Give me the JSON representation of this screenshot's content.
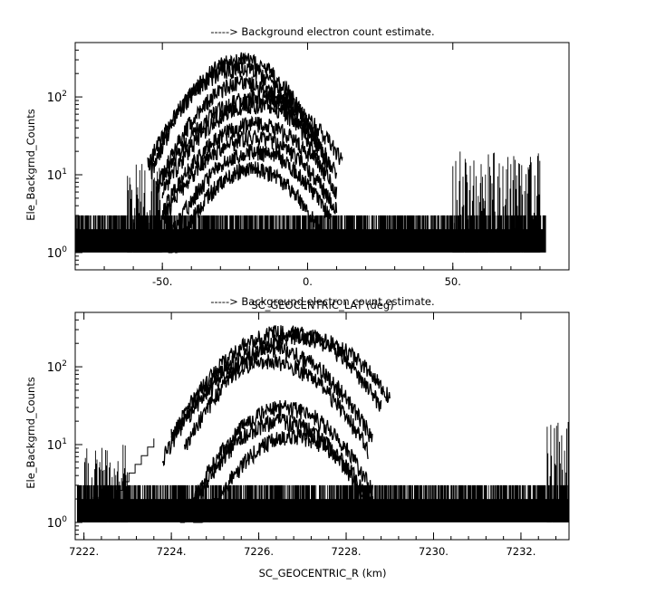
{
  "chart_data": [
    {
      "type": "line",
      "title": "-----> Background electron count estimate.",
      "xlabel": "SC_GEOCENTRIC_LAT (deg)",
      "ylabel": "Ele_Backgrnd_Counts",
      "xlim": [
        -80,
        90
      ],
      "ylim": [
        0.6,
        500
      ],
      "yscale": "log",
      "xticks": [
        -50,
        0,
        50
      ],
      "xtick_labels": [
        "-50.",
        "0.",
        "50."
      ],
      "yticks": [
        1,
        10,
        100
      ],
      "grid": false,
      "legend": "none",
      "noise_floor": {
        "x_range": [
          -82,
          82
        ],
        "value_range": [
          1,
          3
        ]
      },
      "series": [
        {
          "peak_x": -23,
          "peak_y": 300,
          "width": 12,
          "x_range": [
            -54,
            6
          ]
        },
        {
          "peak_x": -24,
          "peak_y": 230,
          "width": 13,
          "x_range": [
            -55,
            8
          ]
        },
        {
          "peak_x": -22,
          "peak_y": 150,
          "width": 12,
          "x_range": [
            -52,
            6
          ]
        },
        {
          "peak_x": -17,
          "peak_y": 100,
          "width": 15,
          "x_range": [
            -52,
            12
          ]
        },
        {
          "peak_x": -18,
          "peak_y": 80,
          "width": 14,
          "x_range": [
            -50,
            10
          ]
        },
        {
          "peak_x": -18,
          "peak_y": 45,
          "width": 14,
          "x_range": [
            -50,
            10
          ]
        },
        {
          "peak_x": -19,
          "peak_y": 30,
          "width": 14,
          "x_range": [
            -50,
            10
          ]
        },
        {
          "peak_x": -18,
          "peak_y": 20,
          "width": 13,
          "x_range": [
            -48,
            8
          ]
        },
        {
          "peak_x": -19,
          "peak_y": 12,
          "width": 12,
          "x_range": [
            -48,
            6
          ]
        }
      ],
      "bursts": [
        {
          "x_range": [
            -62,
            -50
          ],
          "max": 14
        },
        {
          "x_range": [
            50,
            80
          ],
          "max": 20
        }
      ]
    },
    {
      "type": "line",
      "title": "-----> Background electron count estimate.",
      "xlabel": "SC_GEOCENTRIC_R (km)",
      "ylabel": "Ele_Backgrnd_Counts",
      "xlim": [
        7221.8,
        7233.1
      ],
      "ylim": [
        0.6,
        500
      ],
      "yscale": "log",
      "xticks": [
        7222,
        7224,
        7226,
        7228,
        7230,
        7232
      ],
      "xtick_labels": [
        "7222.",
        "7224.",
        "7226.",
        "7228.",
        "7230.",
        "7232."
      ],
      "yticks": [
        1,
        10,
        100
      ],
      "grid": false,
      "legend": "none",
      "noise_floor": {
        "x_range": [
          7221.85,
          7233.1
        ],
        "value_range": [
          1,
          3
        ]
      },
      "series": [
        {
          "peak_x": 7226.6,
          "peak_y": 280,
          "width": 1.05,
          "x_range": [
            7224.0,
            7228.8
          ]
        },
        {
          "peak_x": 7227.0,
          "peak_y": 250,
          "width": 1.05,
          "x_range": [
            7224.3,
            7229.0
          ]
        },
        {
          "peak_x": 7226.3,
          "peak_y": 170,
          "width": 1.0,
          "x_range": [
            7224.0,
            7228.6
          ]
        },
        {
          "peak_x": 7226.2,
          "peak_y": 120,
          "width": 1.0,
          "x_range": [
            7223.8,
            7228.5
          ]
        },
        {
          "peak_x": 7226.6,
          "peak_y": 30,
          "width": 0.9,
          "x_range": [
            7224.2,
            7228.6
          ]
        },
        {
          "peak_x": 7226.5,
          "peak_y": 20,
          "width": 0.9,
          "x_range": [
            7224.2,
            7228.5
          ]
        },
        {
          "peak_x": 7226.8,
          "peak_y": 13,
          "width": 0.9,
          "x_range": [
            7224.5,
            7228.6
          ]
        }
      ],
      "bursts": [
        {
          "x_range": [
            7222.0,
            7223.0
          ],
          "max": 10
        },
        {
          "x_range": [
            7232.6,
            7233.1
          ],
          "max": 20
        }
      ],
      "ramp": {
        "x_range": [
          7222.6,
          7223.6
        ],
        "y_range": [
          2,
          12
        ]
      }
    }
  ]
}
